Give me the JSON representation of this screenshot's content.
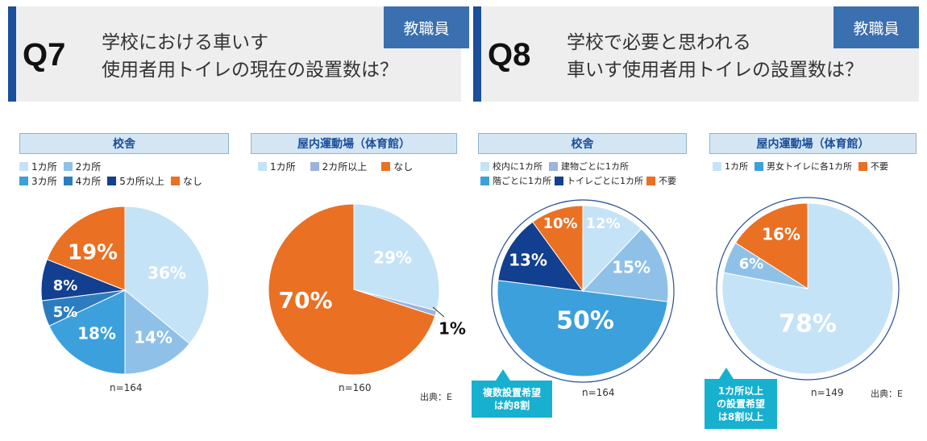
{
  "q7": {
    "number": "Q7",
    "title_lines": [
      "学校における車いす",
      "使用者用トイレの現在の設置数は？"
    ],
    "tag": "教職員"
  },
  "q8": {
    "number": "Q8",
    "title_lines": [
      "学校で必要と思われる",
      "車いす使用者用トイレの設置数は？"
    ],
    "tag": "教職員"
  },
  "colors": {
    "light_blue": "#c5e3f6",
    "sky_blue": "#8fc1e8",
    "mid_blue": "#3ca0dc",
    "steel_blue": "#2c7dc0",
    "navy": "#123f8f",
    "orange": "#ea7024",
    "periwinkle": "#9bb3dd"
  },
  "chart_data": [
    {
      "type": "pie",
      "title": "校舎",
      "n_label": "n=164",
      "legend_rows": [
        [
          {
            "label": "1カ所",
            "color": "#c5e3f6"
          },
          {
            "label": "2カ所",
            "color": "#8fc1e8"
          }
        ],
        [
          {
            "label": "3カ所",
            "color": "#3ca0dc"
          },
          {
            "label": "4カ所",
            "color": "#2c7dc0"
          },
          {
            "label": "5カ所以上",
            "color": "#123f8f"
          },
          {
            "label": "なし",
            "color": "#ea7024"
          }
        ]
      ],
      "slices": [
        {
          "label": "1カ所",
          "value": 36,
          "text": "36%",
          "color": "#c5e3f6"
        },
        {
          "label": "2カ所",
          "value": 14,
          "text": "14%",
          "color": "#8fc1e8"
        },
        {
          "label": "3カ所",
          "value": 18,
          "text": "18%",
          "color": "#3ca0dc"
        },
        {
          "label": "4カ所",
          "value": 5,
          "text": "5%",
          "color": "#2c7dc0"
        },
        {
          "label": "5カ所以上",
          "value": 8,
          "text": "8%",
          "color": "#123f8f"
        },
        {
          "label": "なし",
          "value": 19,
          "text": "19%",
          "color": "#ea7024"
        }
      ]
    },
    {
      "type": "pie",
      "title": "屋内運動場（体育館）",
      "n_label": "n=160",
      "source": "出典：E",
      "legend_rows": [
        [
          {
            "label": "1カ所",
            "color": "#c5e3f6"
          },
          {
            "label": "2カ所以上",
            "color": "#9bb3dd"
          },
          {
            "label": "なし",
            "color": "#ea7024"
          }
        ]
      ],
      "slices": [
        {
          "label": "1カ所",
          "value": 29,
          "text": "29%",
          "color": "#c5e3f6"
        },
        {
          "label": "2カ所以上",
          "value": 1,
          "text": "1%",
          "color": "#9bb3dd"
        },
        {
          "label": "なし",
          "value": 70,
          "text": "70%",
          "color": "#ea7024"
        }
      ]
    },
    {
      "type": "pie",
      "title": "校舎",
      "n_label": "n=164",
      "callout": [
        "複数設置希望",
        "は約8割"
      ],
      "legend_rows": [
        [
          {
            "label": "校内に1カ所",
            "color": "#c5e3f6"
          },
          {
            "label": "建物ごとに1カ所",
            "color": "#9bb3dd"
          }
        ],
        [
          {
            "label": "階ごとに1カ所",
            "color": "#3ca0dc"
          },
          {
            "label": "トイレごとに1カ所",
            "color": "#123f8f"
          },
          {
            "label": "不要",
            "color": "#ea7024"
          }
        ]
      ],
      "slices": [
        {
          "label": "校内に1カ所",
          "value": 12,
          "text": "12%",
          "color": "#c5e3f6"
        },
        {
          "label": "建物ごとに1カ所",
          "value": 15,
          "text": "15%",
          "color": "#8fc1e8"
        },
        {
          "label": "階ごとに1カ所",
          "value": 50,
          "text": "50%",
          "color": "#3ca0dc"
        },
        {
          "label": "トイレごとに1カ所",
          "value": 13,
          "text": "13%",
          "color": "#123f8f"
        },
        {
          "label": "不要",
          "value": 10,
          "text": "10%",
          "color": "#ea7024"
        }
      ]
    },
    {
      "type": "pie",
      "title": "屋内運動場（体育館）",
      "n_label": "n=149",
      "source": "出典：E",
      "callout": [
        "1カ所以上",
        "の設置希望",
        "は8割以上"
      ],
      "legend_rows": [
        [
          {
            "label": "1カ所",
            "color": "#c5e3f6"
          },
          {
            "label": "男女トイレに各1カ所",
            "color": "#3ca0dc"
          },
          {
            "label": "不要",
            "color": "#ea7024"
          }
        ]
      ],
      "slices": [
        {
          "label": "1カ所",
          "value": 78,
          "text": "78%",
          "color": "#c5e3f6"
        },
        {
          "label": "男女トイレに各1カ所",
          "value": 6,
          "text": "6%",
          "color": "#8fc1e8"
        },
        {
          "label": "不要",
          "value": 16,
          "text": "16%",
          "color": "#ea7024"
        }
      ]
    }
  ]
}
